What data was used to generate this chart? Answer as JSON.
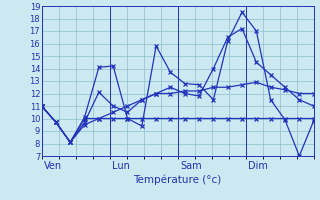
{
  "title": "",
  "xlabel": "Température (°c)",
  "ylabel": "",
  "bg_color": "#cce8f0",
  "grid_color": "#8bbfcc",
  "line_color": "#2233bb",
  "ylim": [
    7,
    19
  ],
  "yticks": [
    7,
    8,
    9,
    10,
    11,
    12,
    13,
    14,
    15,
    16,
    17,
    18,
    19
  ],
  "vline_positions": [
    0.0,
    0.25,
    0.5,
    0.75,
    1.0
  ],
  "xtick_labels": [
    "Ven",
    "Lun",
    "Sam",
    "Dim"
  ],
  "xtick_offsets": [
    0.025,
    0.275,
    0.525,
    0.775
  ],
  "series1": [
    11,
    9.7,
    8.1,
    10.1,
    14.1,
    14.2,
    10.0,
    9.4,
    15.8,
    13.7,
    12.8,
    12.7,
    11.5,
    16.2,
    18.5,
    17.0,
    11.5,
    9.9,
    7.0,
    9.8
  ],
  "series2": [
    11,
    9.7,
    8.1,
    10.0,
    10.0,
    10.0,
    10.0,
    10.0,
    10.0,
    10.0,
    10.0,
    10.0,
    10.0,
    10.0,
    10.0,
    10.0,
    10.0,
    10.0,
    10.0,
    10.0
  ],
  "series3": [
    11,
    9.7,
    8.1,
    9.5,
    10.0,
    10.5,
    11.0,
    11.5,
    12.0,
    12.0,
    12.2,
    12.2,
    12.5,
    12.5,
    12.7,
    12.9,
    12.5,
    12.3,
    12.0,
    12.0
  ],
  "series4": [
    11,
    9.7,
    8.1,
    9.7,
    12.1,
    11.0,
    10.5,
    11.5,
    12.0,
    12.5,
    12.0,
    11.8,
    14.0,
    16.5,
    17.2,
    14.5,
    13.5,
    12.5,
    11.5,
    11.0
  ]
}
